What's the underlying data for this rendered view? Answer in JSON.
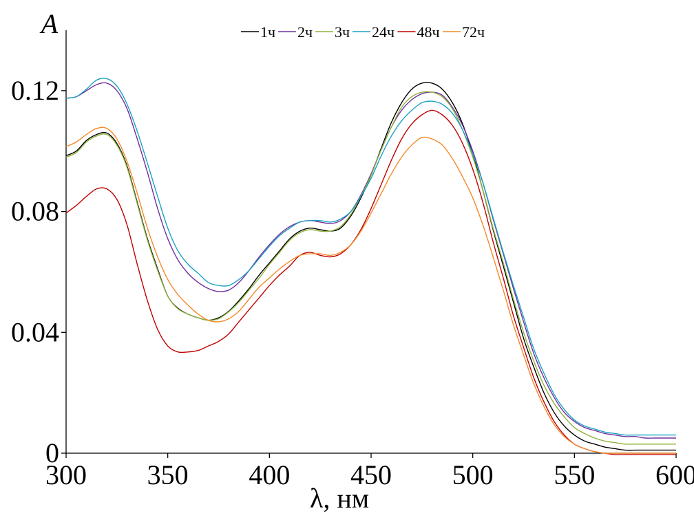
{
  "chart_data": {
    "type": "line",
    "title": "",
    "xlabel": "λ, нм",
    "ylabel": "A",
    "xlim": [
      300,
      600
    ],
    "ylim": [
      0,
      0.14
    ],
    "x_ticks": [
      300,
      350,
      400,
      450,
      500,
      550,
      600
    ],
    "x_tick_labels": [
      "300",
      "350",
      "400",
      "450",
      "500",
      "550",
      "600"
    ],
    "y_ticks": [
      0,
      0.04,
      0.08,
      0.12
    ],
    "y_tick_labels": [
      "0",
      "0.04",
      "0.08",
      "0.12"
    ],
    "grid": false,
    "legend_position": "top-center",
    "x": [
      300,
      305,
      310,
      315,
      320,
      325,
      330,
      335,
      340,
      345,
      350,
      355,
      360,
      365,
      370,
      375,
      380,
      385,
      390,
      395,
      400,
      405,
      410,
      415,
      420,
      425,
      430,
      435,
      440,
      445,
      450,
      455,
      460,
      465,
      470,
      475,
      480,
      485,
      490,
      495,
      500,
      505,
      510,
      515,
      520,
      525,
      530,
      535,
      540,
      545,
      550,
      555,
      560,
      565,
      570,
      575,
      580,
      585,
      590,
      595,
      600
    ],
    "series": [
      {
        "name": "1ч",
        "color": "#000000",
        "values": [
          0.0985,
          0.1,
          0.1035,
          0.1055,
          0.106,
          0.1025,
          0.095,
          0.083,
          0.071,
          0.061,
          0.052,
          0.048,
          0.046,
          0.0448,
          0.044,
          0.0448,
          0.047,
          0.0505,
          0.0545,
          0.059,
          0.063,
          0.067,
          0.071,
          0.0735,
          0.0745,
          0.074,
          0.0735,
          0.0745,
          0.0785,
          0.0845,
          0.092,
          0.101,
          0.1095,
          0.116,
          0.1205,
          0.1225,
          0.1225,
          0.1205,
          0.116,
          0.109,
          0.099,
          0.087,
          0.074,
          0.062,
          0.05,
          0.038,
          0.0285,
          0.02,
          0.0135,
          0.009,
          0.006,
          0.004,
          0.003,
          0.002,
          0.0015,
          0.001,
          0.001,
          0.001,
          0.001,
          0.001,
          0.001
        ]
      },
      {
        "name": "2ч",
        "color": "#7030a0",
        "values": [
          0.1175,
          0.118,
          0.12,
          0.122,
          0.1225,
          0.12,
          0.114,
          0.104,
          0.093,
          0.081,
          0.071,
          0.064,
          0.0595,
          0.0565,
          0.0545,
          0.0535,
          0.054,
          0.0565,
          0.0605,
          0.065,
          0.069,
          0.0725,
          0.075,
          0.0765,
          0.077,
          0.0765,
          0.076,
          0.077,
          0.08,
          0.0855,
          0.0925,
          0.1005,
          0.108,
          0.1135,
          0.117,
          0.119,
          0.1195,
          0.1185,
          0.1145,
          0.1085,
          0.1,
          0.0895,
          0.0775,
          0.066,
          0.0545,
          0.0435,
          0.033,
          0.025,
          0.0185,
          0.0135,
          0.0105,
          0.0085,
          0.0075,
          0.0065,
          0.006,
          0.0055,
          0.0055,
          0.005,
          0.005,
          0.005,
          0.005
        ]
      },
      {
        "name": "3ч",
        "color": "#8db33a",
        "values": [
          0.098,
          0.0995,
          0.103,
          0.105,
          0.1055,
          0.102,
          0.0945,
          0.0825,
          0.0705,
          0.0605,
          0.052,
          0.0478,
          0.046,
          0.0448,
          0.044,
          0.0445,
          0.0468,
          0.05,
          0.054,
          0.058,
          0.0625,
          0.0665,
          0.0705,
          0.073,
          0.074,
          0.0735,
          0.0735,
          0.075,
          0.079,
          0.085,
          0.092,
          0.1005,
          0.108,
          0.1145,
          0.118,
          0.1195,
          0.1195,
          0.118,
          0.114,
          0.107,
          0.098,
          0.087,
          0.0745,
          0.063,
          0.051,
          0.04,
          0.0305,
          0.0225,
          0.0165,
          0.012,
          0.0085,
          0.0065,
          0.005,
          0.004,
          0.0035,
          0.003,
          0.003,
          0.003,
          0.003,
          0.003,
          0.003
        ]
      },
      {
        "name": "24ч",
        "color": "#1ba1c0",
        "values": [
          0.1175,
          0.118,
          0.1205,
          0.1235,
          0.124,
          0.1215,
          0.1155,
          0.1065,
          0.096,
          0.085,
          0.0745,
          0.067,
          0.0625,
          0.0595,
          0.0565,
          0.0555,
          0.0555,
          0.0575,
          0.0605,
          0.0645,
          0.0685,
          0.072,
          0.0745,
          0.0765,
          0.077,
          0.077,
          0.0765,
          0.0775,
          0.08,
          0.085,
          0.091,
          0.0985,
          0.105,
          0.11,
          0.1135,
          0.116,
          0.1165,
          0.1155,
          0.1125,
          0.107,
          0.099,
          0.0895,
          0.078,
          0.0665,
          0.0555,
          0.045,
          0.0345,
          0.0265,
          0.0195,
          0.0145,
          0.011,
          0.009,
          0.008,
          0.007,
          0.0065,
          0.006,
          0.006,
          0.006,
          0.006,
          0.006,
          0.006
        ]
      },
      {
        "name": "48ч",
        "color": "#c00000",
        "values": [
          0.0795,
          0.082,
          0.085,
          0.0875,
          0.0875,
          0.084,
          0.0755,
          0.0625,
          0.0505,
          0.041,
          0.0355,
          0.0335,
          0.0335,
          0.034,
          0.0355,
          0.037,
          0.0395,
          0.0435,
          0.0475,
          0.0515,
          0.0555,
          0.059,
          0.062,
          0.0655,
          0.0665,
          0.0655,
          0.065,
          0.066,
          0.069,
          0.074,
          0.081,
          0.089,
          0.097,
          0.104,
          0.109,
          0.112,
          0.1135,
          0.112,
          0.1085,
          0.1025,
          0.094,
          0.083,
          0.07,
          0.058,
          0.0455,
          0.035,
          0.025,
          0.017,
          0.0105,
          0.006,
          0.003,
          0.0015,
          0.0005,
          0.0,
          -0.0005,
          -0.0005,
          -0.0005,
          -0.0005,
          -0.0005,
          -0.0005,
          -0.0005
        ]
      },
      {
        "name": "72ч",
        "color": "#f4892a",
        "values": [
          0.1015,
          0.103,
          0.1055,
          0.1075,
          0.1075,
          0.104,
          0.0965,
          0.086,
          0.0745,
          0.065,
          0.0575,
          0.0525,
          0.049,
          0.046,
          0.044,
          0.0435,
          0.0445,
          0.047,
          0.051,
          0.055,
          0.058,
          0.061,
          0.0635,
          0.0655,
          0.066,
          0.066,
          0.0655,
          0.0665,
          0.069,
          0.0735,
          0.0795,
          0.086,
          0.0925,
          0.098,
          0.102,
          0.1045,
          0.104,
          0.102,
          0.0975,
          0.0915,
          0.0845,
          0.0755,
          0.065,
          0.054,
          0.0425,
          0.0325,
          0.023,
          0.0155,
          0.0095,
          0.0055,
          0.003,
          0.0015,
          0.0005,
          0.0,
          0.0,
          0.0,
          0.0,
          0.0,
          0.0,
          0.0,
          0.0
        ]
      }
    ]
  }
}
